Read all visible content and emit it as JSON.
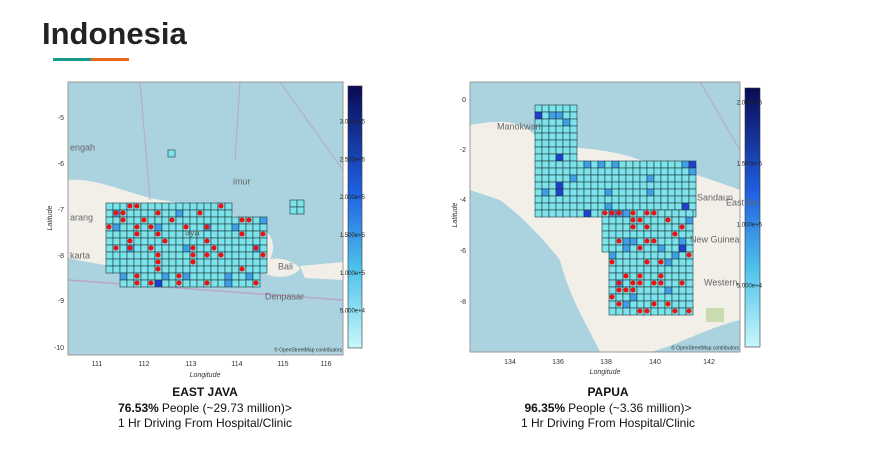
{
  "header": {
    "title": "Indonesia"
  },
  "panels": [
    {
      "y_ticks": [
        "-5",
        "-6",
        "-7",
        "-8",
        "-9",
        "-10"
      ],
      "x_ticks": [
        "111",
        "112",
        "113",
        "114",
        "115",
        "116"
      ],
      "y_label": "Latitude",
      "x_label": "Longitude",
      "colorbar_labels": [
        "3.000e+5",
        "2.500e+5",
        "2.000e+5",
        "1.500e+5",
        "1.000e+5",
        "5.000e+4"
      ],
      "place_labels": [
        "engah",
        "arang",
        "karta",
        "aya",
        "imur",
        "Bali",
        "Denpasar"
      ],
      "attribution": "© OpenStreetMap contributors",
      "caption": {
        "name": "EAST JAVA",
        "percent": "76.53%",
        "people": "People (~29.73 million)>",
        "line2": "1 Hr Driving From Hospital/Clinic"
      }
    },
    {
      "y_ticks": [
        "0",
        "-2",
        "-4",
        "-6",
        "-8"
      ],
      "x_ticks": [
        "134",
        "136",
        "138",
        "140",
        "142"
      ],
      "y_label": "Latitude",
      "x_label": "Longitude",
      "colorbar_labels": [
        "2.000e+5",
        "1.500e+5",
        "1.000e+5",
        "5.000e+4"
      ],
      "place_labels": [
        "Manokwari",
        "Sandaun",
        "East Se",
        "New Guinea",
        "Western"
      ],
      "attribution": "© OpenStreetMap contributors",
      "caption": {
        "name": "PAPUA",
        "percent": "96.35%",
        "people": "People (~3.36 million)>",
        "line2": "1 Hr Driving From Hospital/Clinic"
      }
    }
  ]
}
